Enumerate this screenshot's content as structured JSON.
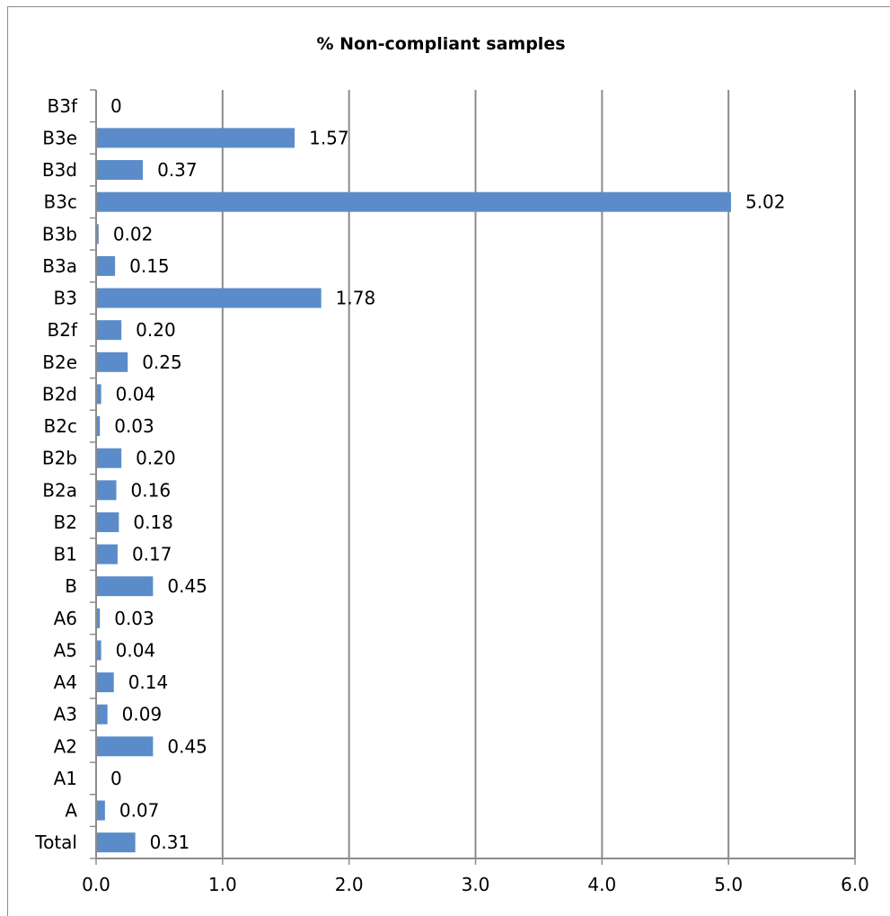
{
  "chart_data": {
    "type": "bar",
    "orientation": "horizontal",
    "title": "% Non-compliant samples",
    "xlabel": "",
    "ylabel": "",
    "xlim": [
      0,
      6
    ],
    "x_ticks": [
      "0.0",
      "1.0",
      "2.0",
      "3.0",
      "4.0",
      "5.0",
      "6.0"
    ],
    "grid": "vertical",
    "bar_color": "#5b8cc9",
    "categories": [
      "B3f",
      "B3e",
      "B3d",
      "B3c",
      "B3b",
      "B3a",
      "B3",
      "B2f",
      "B2e",
      "B2d",
      "B2c",
      "B2b",
      "B2a",
      "B2",
      "B1",
      "B",
      "A6",
      "A5",
      "A4",
      "A3",
      "A2",
      "A1",
      "A",
      "Total"
    ],
    "values": [
      0,
      1.57,
      0.37,
      5.02,
      0.02,
      0.15,
      1.78,
      0.2,
      0.25,
      0.04,
      0.03,
      0.2,
      0.16,
      0.18,
      0.17,
      0.45,
      0.03,
      0.04,
      0.14,
      0.09,
      0.45,
      0,
      0.07,
      0.31
    ],
    "value_labels": [
      "0",
      "1.57",
      "0.37",
      "5.02",
      "0.02",
      "0.15",
      "1.78",
      "0.20",
      "0.25",
      "0.04",
      "0.03",
      "0.20",
      "0.16",
      "0.18",
      "0.17",
      "0.45",
      "0.03",
      "0.04",
      "0.14",
      "0.09",
      "0.45",
      "0",
      "0.07",
      "0.31"
    ]
  }
}
